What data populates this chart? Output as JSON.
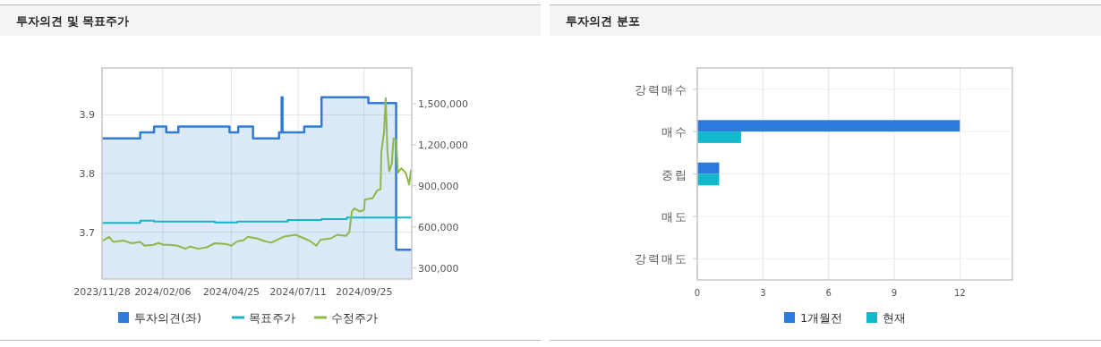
{
  "chart_data": [
    {
      "type": "line",
      "title": "투자의견 및 목표주가",
      "series": [
        {
          "name": "투자의견(좌)",
          "type": "area",
          "color": "#2f7bd6",
          "x": [
            "2023-11-28",
            "2024-01-11",
            "2024-01-11",
            "2024-01-27",
            "2024-01-27",
            "2024-02-10",
            "2024-02-10",
            "2024-02-24",
            "2024-02-24",
            "2024-04-23",
            "2024-04-23",
            "2024-05-03",
            "2024-05-03",
            "2024-05-20",
            "2024-05-20",
            "2024-06-19",
            "2024-06-19",
            "2024-06-22",
            "2024-06-22",
            "2024-06-23",
            "2024-06-23",
            "2024-07-18",
            "2024-07-18",
            "2024-08-07",
            "2024-08-07",
            "2024-09-30",
            "2024-09-30",
            "2024-11-01",
            "2024-11-01",
            "2024-11-19"
          ],
          "values": [
            3.86,
            3.86,
            3.87,
            3.87,
            3.88,
            3.88,
            3.87,
            3.87,
            3.88,
            3.88,
            3.87,
            3.87,
            3.88,
            3.88,
            3.86,
            3.86,
            3.87,
            3.87,
            3.93,
            3.93,
            3.87,
            3.87,
            3.88,
            3.88,
            3.93,
            3.93,
            3.92,
            3.92,
            3.67,
            3.67
          ]
        },
        {
          "name": "목표주가",
          "type": "line",
          "axis": "y2",
          "color": "#17b5c9",
          "x": [
            "2023-11-28",
            "2024-01-11",
            "2024-01-11",
            "2024-01-27",
            "2024-01-27",
            "2024-04-06",
            "2024-04-06",
            "2024-05-02",
            "2024-05-02",
            "2024-06-29",
            "2024-06-29",
            "2024-08-07",
            "2024-08-07",
            "2024-09-05",
            "2024-09-05",
            "2024-11-19"
          ],
          "values": [
            630000,
            630000,
            645000,
            645000,
            640000,
            640000,
            632000,
            632000,
            640000,
            640000,
            650000,
            650000,
            657000,
            657000,
            668000,
            668000
          ]
        },
        {
          "name": "수정주가",
          "type": "line",
          "axis": "y2",
          "color": "#8fb84a",
          "x": [
            "2023-11-29",
            "2023-12-06",
            "2023-12-11",
            "2023-12-23",
            "2024-01-01",
            "2024-01-11",
            "2024-01-16",
            "2024-01-26",
            "2024-02-01",
            "2024-02-07",
            "2024-02-14",
            "2024-02-23",
            "2024-03-03",
            "2024-03-09",
            "2024-03-18",
            "2024-03-28",
            "2024-04-06",
            "2024-04-20",
            "2024-04-25",
            "2024-05-02",
            "2024-05-09",
            "2024-05-14",
            "2024-05-24",
            "2024-06-03",
            "2024-06-10",
            "2024-06-24",
            "2024-07-08",
            "2024-07-18",
            "2024-07-25",
            "2024-08-01",
            "2024-08-06",
            "2024-08-18",
            "2024-08-25",
            "2024-09-04",
            "2024-09-08",
            "2024-09-11",
            "2024-09-14",
            "2024-09-20",
            "2024-09-25",
            "2024-09-26",
            "2024-10-05",
            "2024-10-10",
            "2024-10-14",
            "2024-10-15",
            "2024-10-18",
            "2024-10-20",
            "2024-10-22",
            "2024-10-24",
            "2024-10-27",
            "2024-10-29",
            "2024-11-01",
            "2024-11-03",
            "2024-11-07",
            "2024-11-12",
            "2024-11-16",
            "2024-11-18"
          ],
          "values": [
            500000,
            528000,
            491000,
            500000,
            481000,
            491000,
            463000,
            470000,
            483000,
            470000,
            470000,
            463000,
            441000,
            457000,
            441000,
            452000,
            481000,
            474000,
            463000,
            496000,
            502000,
            528000,
            517000,
            496000,
            485000,
            528000,
            543000,
            517000,
            496000,
            463000,
            507000,
            517000,
            543000,
            535000,
            561000,
            713000,
            735000,
            713000,
            724000,
            800000,
            811000,
            865000,
            876000,
            1148000,
            1289000,
            1539000,
            1148000,
            1006000,
            1061000,
            1246000,
            1235000,
            996000,
            1028000,
            996000,
            908000,
            1017000
          ]
        }
      ],
      "xlim": [
        "2023-11-28",
        "2024-11-19"
      ],
      "xticks": [
        {
          "value": "2023-11-28",
          "label": "2023/11/28"
        },
        {
          "value": "2024-02-06",
          "label": "2024/02/06"
        },
        {
          "value": "2024-04-25",
          "label": "2024/04/25"
        },
        {
          "value": "2024-07-11",
          "label": "2024/07/11"
        },
        {
          "value": "2024-09-25",
          "label": "2024/09/25"
        }
      ],
      "ylim": [
        3.62,
        3.98
      ],
      "yticks": [
        3.7,
        3.8,
        3.9
      ],
      "y2lim": [
        220000,
        1760000
      ],
      "y2ticks": [
        {
          "value": 300000,
          "label": "300,000"
        },
        {
          "value": 600000,
          "label": "600,000"
        },
        {
          "value": 900000,
          "label": "900,000"
        },
        {
          "value": 1200000,
          "label": "1,200,000"
        },
        {
          "value": 1500000,
          "label": "1,500,000"
        }
      ],
      "grid": true,
      "legend": "bottom"
    },
    {
      "type": "bar",
      "title": "투자의견 분포",
      "orientation": "horizontal",
      "categories": [
        "강력매수",
        "매수",
        "중립",
        "매도",
        "강력매도"
      ],
      "series": [
        {
          "name": "1개월전",
          "color": "#2b7bdc",
          "values": [
            0,
            12,
            1,
            0,
            0
          ]
        },
        {
          "name": "현재",
          "color": "#12b8cc",
          "values": [
            0,
            2,
            1,
            0,
            0
          ]
        }
      ],
      "xlim": [
        0,
        14.4
      ],
      "xticks": [
        0,
        3,
        6,
        9,
        12
      ],
      "grid": true,
      "legend": "bottom"
    }
  ]
}
